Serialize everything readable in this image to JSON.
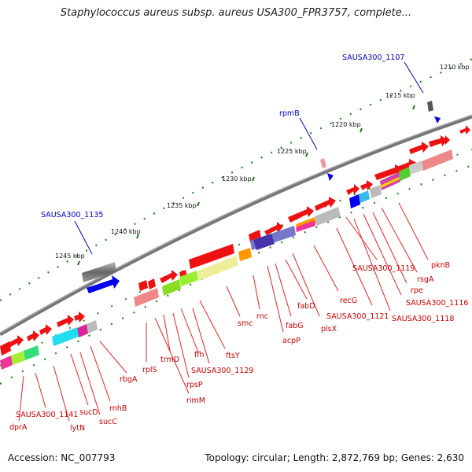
{
  "title": "Staphylococcus aureus subsp. aureus USA300_FPR3757, complete...",
  "footer": {
    "accession": "Accession: NC_007793",
    "topology": "Topology: circular; Length: 2,872,769 bp; Genes: 2,630"
  },
  "scale_labels": [
    "1210 kbp",
    "1215 kbp",
    "1220 kbp",
    "1225 kbp",
    "1230 kbp",
    "1235 kbp",
    "1240 kbp",
    "1245 kbp"
  ],
  "blue_labels": [
    "SAUSA300_1107",
    "rpmB",
    "SAUSA300_1135"
  ],
  "gene_labels": [
    "pknB",
    "rsgA",
    "rpe",
    "SAUSA300_1116",
    "SAUSA300_1118",
    "SAUSA300_1119",
    "SAUSA300_1121",
    "recG",
    "plsX",
    "fabD",
    "fabG",
    "acpP",
    "rnc",
    "smc",
    "ftsY",
    "SAUSA300_1129",
    "ffh",
    "rpsP",
    "trmD",
    "rimM",
    "rplS",
    "rbgA",
    "rnhB",
    "sucC",
    "sucD",
    "lytN",
    "SAUSA300_1141",
    "dprA"
  ],
  "colors": {
    "backbone": "#888888",
    "gene_red": "#ee1111",
    "label_red": "#cc0000",
    "label_blue": "#0000cc",
    "tick_green": "#227722"
  }
}
